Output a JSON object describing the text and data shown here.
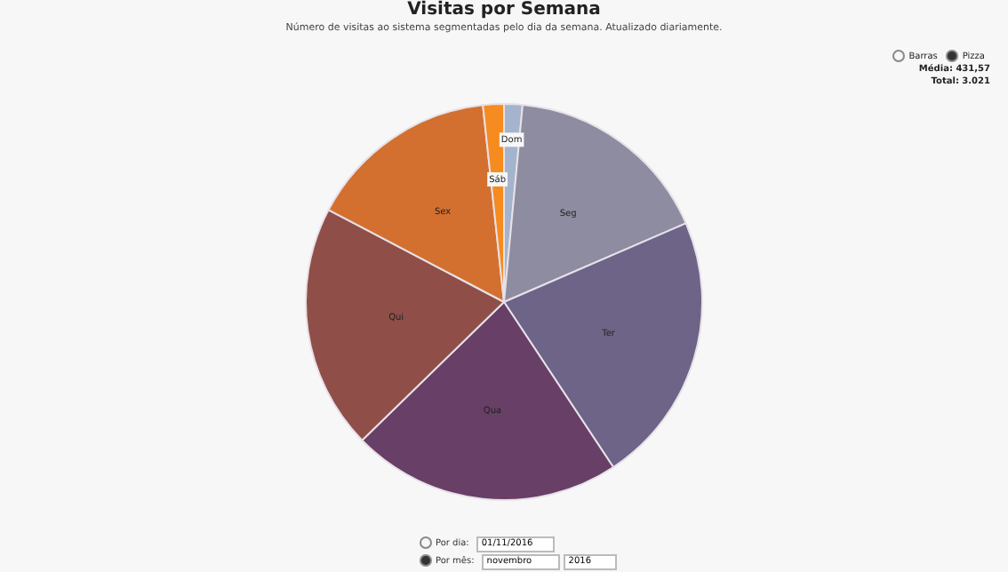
{
  "chart_data": {
    "type": "pie",
    "title": "Visitas por Semana",
    "subtitle": "Número de visitas ao sistema segmentadas pelo dia da semana. Atualizado diariamente.",
    "categories": [
      "Dom",
      "Seg",
      "Ter",
      "Qua",
      "Qui",
      "Sex",
      "Sáb"
    ],
    "values": [
      1.5,
      17.0,
      22.2,
      22.0,
      20.0,
      15.6,
      1.7
    ],
    "colors": [
      "#a4b4cc",
      "#8d8ca0",
      "#6d6488",
      "#683f66",
      "#8f4f48",
      "#d3702f",
      "#f68b1f"
    ],
    "legend": false,
    "annotations": [
      "Barras",
      "Pizza",
      "Média: 431,57",
      "Total: 3.021",
      "Por dia:",
      "01/11/2016",
      "Por mês:",
      "novembro",
      "2016"
    ]
  }
}
